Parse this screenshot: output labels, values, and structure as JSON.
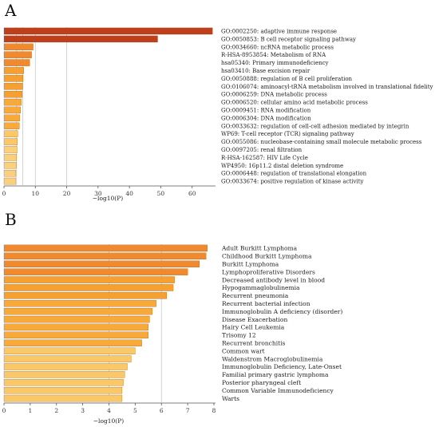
{
  "chart_data": [
    {
      "panel": "A",
      "type": "bar",
      "orientation": "horizontal",
      "xlabel": "−log10(P)",
      "xlim": [
        0,
        70
      ],
      "xticks": [
        0,
        10,
        20,
        30,
        40,
        50,
        60
      ],
      "gridlines_at": [
        4,
        6,
        10,
        20
      ],
      "categories": [
        "GO:0002250: adaptive immune response",
        "GO:0050853: B cell receptor signaling pathway",
        "GO:0034660: ncRNA metabolic process",
        "R-HSA-8953854: Metabolism of RNA",
        "hsa05340: Primary immunodeficiency",
        "hsa03410: Base excision repair",
        "GO:0050888: regulation of B cell proliferation",
        "GO:0106074: aminoacyl-tRNA metabolism involved in translational fidelity",
        "GO:0006259: DNA metabolic process",
        "GO:0006520: cellular amino acid metabolic process",
        "GO:0009451: RNA modification",
        "GO:0006304: DNA modification",
        "GO:0033632: regulation of cell-cell adhesion mediated by integrin",
        "WP69: T-cell receptor (TCR) signaling pathway",
        "GO:0055086: nucleobase-containing small molecule metabolic process",
        "GO:0097205: renal filtration",
        "R-HSA-162587: HIV Life Cycle",
        "WP4950: 16p11.2 distal deletion syndrome",
        "GO:0006448: regulation of translational elongation",
        "GO:0033674: positive regulation of kinase activity"
      ],
      "values": [
        66.5,
        49,
        9.3,
        8.8,
        8.2,
        6.3,
        6.1,
        5.9,
        5.8,
        5.5,
        5.3,
        5.0,
        4.9,
        4.4,
        4.3,
        4.2,
        4.0,
        3.9,
        3.8,
        3.7
      ],
      "colors": [
        "#bf3f1a",
        "#bf3f1a",
        "#f08a2c",
        "#f08a2c",
        "#f08a2c",
        "#f5a030",
        "#f5a030",
        "#f5a030",
        "#f5a030",
        "#f7aa3a",
        "#f7aa3a",
        "#f7aa3a",
        "#f7aa3a",
        "#fac866",
        "#fac866",
        "#fad07a",
        "#fad07a",
        "#fad07a",
        "#fad07a",
        "#fad07a"
      ]
    },
    {
      "panel": "B",
      "type": "bar",
      "orientation": "horizontal",
      "xlabel": "−log10(P)",
      "xlim": [
        0,
        8
      ],
      "xticks": [
        0,
        1,
        2,
        3,
        4,
        5,
        6,
        7,
        8
      ],
      "gridlines_at": [
        4,
        6
      ],
      "categories": [
        "Adult Burkitt Lymphoma",
        "Childhood Burkitt Lymphoma",
        "Burkitt Lymphoma",
        "Lymphoproliferative Disorders",
        "Decreased antibody level in blood",
        "Hypogammaglobulinemia",
        "Recurrent pneumonia",
        "Recurrent bacterial infection",
        "Immunoglobulin A deficiency (disorder)",
        "Disease Exacerbation",
        "Hairy Cell Leukemia",
        "Trisomy 12",
        "Recurrent bronchitis",
        "Common wart",
        "Waldenstrom Macroglobulinemia",
        "Immunoglobulin Deficiency, Late-Onset",
        "Familial primary gastric lymphoma",
        "Posterior pharyngeal cleft",
        "Common Variable Immunodeficiency",
        "Warts"
      ],
      "values": [
        7.75,
        7.7,
        7.45,
        7.0,
        6.5,
        6.45,
        6.2,
        5.8,
        5.65,
        5.55,
        5.5,
        5.5,
        5.25,
        5.0,
        4.85,
        4.7,
        4.6,
        4.55,
        4.5,
        4.5
      ],
      "colors": [
        "#f08a2c",
        "#f08a2c",
        "#f08a2c",
        "#f08a2c",
        "#f5a030",
        "#f5a030",
        "#f5a030",
        "#f7aa3a",
        "#f7aa3a",
        "#f7aa3a",
        "#f7aa3a",
        "#f7aa3a",
        "#f7aa3a",
        "#fac866",
        "#fac866",
        "#fac866",
        "#fac866",
        "#fac866",
        "#fac866",
        "#fac866"
      ]
    }
  ]
}
